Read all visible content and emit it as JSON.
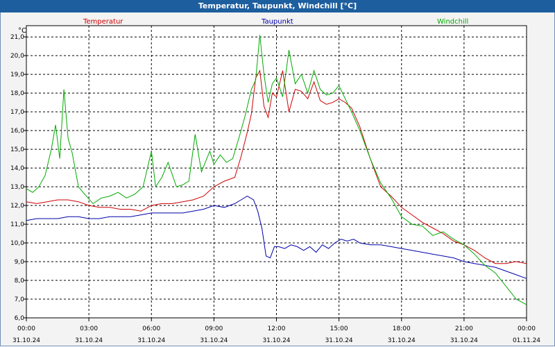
{
  "title": "Temperatur, Taupunkt, Windchill [°C]",
  "chart_data": {
    "type": "line",
    "title": "Temperatur, Taupunkt, Windchill [°C]",
    "ylabel": "°C",
    "ylim": [
      6.0,
      21.6
    ],
    "xlim": [
      0,
      24
    ],
    "yticks": [
      "6,0",
      "7,0",
      "8,0",
      "9,0",
      "10,0",
      "11,0",
      "12,0",
      "13,0",
      "14,0",
      "15,0",
      "16,0",
      "17,0",
      "18,0",
      "19,0",
      "20,0",
      "21,0"
    ],
    "yticks_values": [
      6,
      7,
      8,
      9,
      10,
      11,
      12,
      13,
      14,
      15,
      16,
      17,
      18,
      19,
      20,
      21
    ],
    "xticks": [
      {
        "time": "00:00",
        "date": "31.10.24",
        "h": 0
      },
      {
        "time": "03:00",
        "date": "31.10.24",
        "h": 3
      },
      {
        "time": "06:00",
        "date": "31.10.24",
        "h": 6
      },
      {
        "time": "09:00",
        "date": "31.10.24",
        "h": 9
      },
      {
        "time": "12:00",
        "date": "31.10.24",
        "h": 12
      },
      {
        "time": "15:00",
        "date": "31.10.24",
        "h": 15
      },
      {
        "time": "18:00",
        "date": "31.10.24",
        "h": 18
      },
      {
        "time": "21:00",
        "date": "31.10.24",
        "h": 21
      },
      {
        "time": "00:00",
        "date": "01.11.24",
        "h": 24
      }
    ],
    "grid": true,
    "series": [
      {
        "name": "Temperatur",
        "color": "#cc0000",
        "x": [
          0,
          0.5,
          1,
          1.5,
          2,
          2.5,
          3,
          3.5,
          4,
          4.5,
          5,
          5.5,
          6,
          6.5,
          7,
          7.5,
          8,
          8.5,
          9,
          9.5,
          10,
          10.3,
          10.6,
          10.8,
          11,
          11.2,
          11.4,
          11.6,
          11.8,
          12,
          12.3,
          12.6,
          12.9,
          13.2,
          13.5,
          13.8,
          14.1,
          14.4,
          14.7,
          15,
          15.3,
          15.6,
          16,
          16.5,
          17,
          17.5,
          18,
          18.5,
          19,
          19.5,
          20,
          20.5,
          21,
          21.5,
          22,
          22.5,
          23,
          23.5,
          24
        ],
        "values": [
          12.2,
          12.1,
          12.2,
          12.3,
          12.3,
          12.2,
          12.0,
          11.9,
          11.9,
          11.8,
          11.8,
          11.7,
          12.0,
          12.1,
          12.1,
          12.2,
          12.3,
          12.5,
          13.0,
          13.3,
          13.5,
          14.6,
          15.9,
          16.9,
          18.8,
          19.2,
          17.3,
          16.7,
          18.0,
          17.8,
          19.2,
          17.0,
          18.2,
          18.1,
          17.7,
          18.6,
          17.6,
          17.4,
          17.5,
          17.7,
          17.5,
          17.2,
          16.2,
          14.5,
          13.0,
          12.5,
          11.9,
          11.5,
          11.1,
          10.8,
          10.5,
          10.1,
          9.9,
          9.6,
          9.2,
          8.9,
          8.9,
          9.0,
          8.9
        ]
      },
      {
        "name": "Taupunkt",
        "color": "#0000aa",
        "x": [
          0,
          0.5,
          1,
          1.5,
          2,
          2.5,
          3,
          3.5,
          4,
          4.5,
          5,
          5.5,
          6,
          6.5,
          7,
          7.5,
          8,
          8.5,
          9,
          9.5,
          10,
          10.3,
          10.6,
          10.9,
          11.1,
          11.3,
          11.5,
          11.7,
          11.9,
          12.1,
          12.4,
          12.7,
          13,
          13.3,
          13.6,
          13.9,
          14.2,
          14.5,
          14.8,
          15.1,
          15.4,
          15.7,
          16,
          16.5,
          17,
          17.5,
          18,
          18.5,
          19,
          19.5,
          20,
          20.5,
          21,
          21.5,
          22,
          22.5,
          23,
          23.5,
          24
        ],
        "values": [
          11.2,
          11.3,
          11.3,
          11.3,
          11.4,
          11.4,
          11.3,
          11.3,
          11.4,
          11.4,
          11.4,
          11.5,
          11.6,
          11.6,
          11.6,
          11.6,
          11.7,
          11.8,
          12.0,
          11.9,
          12.1,
          12.3,
          12.5,
          12.3,
          11.7,
          10.8,
          9.3,
          9.2,
          9.8,
          9.8,
          9.7,
          9.9,
          9.8,
          9.6,
          9.8,
          9.5,
          9.9,
          9.7,
          10.0,
          10.2,
          10.1,
          10.2,
          10.0,
          9.9,
          9.9,
          9.8,
          9.7,
          9.6,
          9.5,
          9.4,
          9.3,
          9.2,
          9.0,
          8.9,
          8.8,
          8.7,
          8.5,
          8.3,
          8.1
        ]
      },
      {
        "name": "Windchill",
        "color": "#00aa00",
        "x": [
          0,
          0.3,
          0.6,
          0.9,
          1.2,
          1.4,
          1.6,
          1.8,
          2.0,
          2.2,
          2.5,
          2.8,
          3.2,
          3.6,
          4.0,
          4.4,
          4.8,
          5.2,
          5.6,
          6.0,
          6.2,
          6.5,
          6.8,
          7.2,
          7.5,
          7.8,
          8.1,
          8.4,
          8.8,
          9.0,
          9.3,
          9.6,
          9.9,
          10.2,
          10.5,
          10.8,
          11.0,
          11.2,
          11.4,
          11.6,
          11.8,
          12.0,
          12.3,
          12.6,
          12.9,
          13.2,
          13.5,
          13.8,
          14.1,
          14.4,
          14.7,
          15.0,
          15.3,
          15.6,
          16.0,
          16.5,
          17.0,
          17.5,
          18.0,
          18.5,
          19.0,
          19.5,
          20.0,
          20.5,
          21.0,
          21.5,
          22.0,
          22.5,
          23.0,
          23.5,
          24
        ],
        "values": [
          12.9,
          12.7,
          13.0,
          13.6,
          15.0,
          16.3,
          14.5,
          18.2,
          15.6,
          14.8,
          13.0,
          12.6,
          12.1,
          12.4,
          12.5,
          12.7,
          12.4,
          12.6,
          13.0,
          14.9,
          13.0,
          13.5,
          14.3,
          13.0,
          13.1,
          13.3,
          15.8,
          13.8,
          14.9,
          14.2,
          14.7,
          14.3,
          14.5,
          15.6,
          16.8,
          18.2,
          18.7,
          21.1,
          19.0,
          17.5,
          18.5,
          18.8,
          17.8,
          20.3,
          18.5,
          19.0,
          18.0,
          19.2,
          18.2,
          17.9,
          18.0,
          18.4,
          17.7,
          17.0,
          16.0,
          14.5,
          13.2,
          12.4,
          11.4,
          11.0,
          10.9,
          10.4,
          10.6,
          10.2,
          9.9,
          9.4,
          8.8,
          8.4,
          7.7,
          7.0,
          6.7
        ]
      }
    ]
  }
}
